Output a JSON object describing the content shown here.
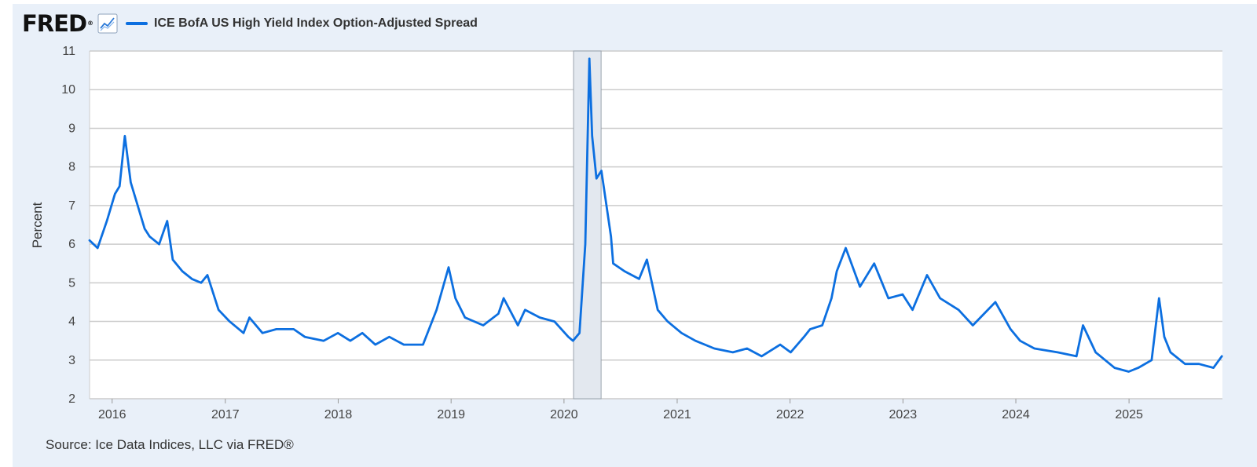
{
  "header": {
    "logo_text": "FRED",
    "logo_mark": "®",
    "series_label": "ICE BofA US High Yield Index Option-Adjusted Spread"
  },
  "source": "Source: Ice Data Indices, LLC via FRED®",
  "colors": {
    "series": "#0c6fe0",
    "recession": "#e3e8ef",
    "grid": "#cccccc",
    "panel": "#e9f0f9"
  },
  "icons": {
    "chart_icon": "line-chart-icon"
  },
  "chart_data": {
    "type": "line",
    "title": "",
    "xlabel": "",
    "ylabel": "Percent",
    "ylim": [
      2,
      11
    ],
    "xlim": [
      "2015-10-20",
      "2025-10-30"
    ],
    "grid": true,
    "yticks": [
      "2",
      "3",
      "4",
      "5",
      "6",
      "7",
      "8",
      "9",
      "10",
      "11"
    ],
    "xticks": [
      "2016",
      "2017",
      "2018",
      "2019",
      "2020",
      "2021",
      "2022",
      "2023",
      "2024",
      "2025"
    ],
    "shaded_periods": [
      {
        "start": "2020-02-01",
        "end": "2020-04-30",
        "label": "Recession"
      }
    ],
    "series": [
      {
        "name": "ICE BofA US High Yield Index Option-Adjusted Spread",
        "x": [
          "2015-10-20",
          "2015-11-15",
          "2015-12-15",
          "2016-01-10",
          "2016-01-25",
          "2016-02-11",
          "2016-03-01",
          "2016-03-20",
          "2016-04-15",
          "2016-05-01",
          "2016-06-01",
          "2016-06-27",
          "2016-07-15",
          "2016-08-15",
          "2016-09-15",
          "2016-10-15",
          "2016-11-04",
          "2016-12-10",
          "2017-01-15",
          "2017-03-01",
          "2017-03-20",
          "2017-05-01",
          "2017-06-15",
          "2017-08-10",
          "2017-09-15",
          "2017-11-15",
          "2017-12-31",
          "2018-02-09",
          "2018-03-20",
          "2018-05-01",
          "2018-06-15",
          "2018-08-01",
          "2018-10-02",
          "2018-11-15",
          "2018-12-24",
          "2019-01-15",
          "2019-02-15",
          "2019-04-15",
          "2019-06-03",
          "2019-06-20",
          "2019-08-05",
          "2019-08-28",
          "2019-10-15",
          "2019-12-01",
          "2020-01-15",
          "2020-01-30",
          "2020-02-20",
          "2020-03-10",
          "2020-03-23",
          "2020-04-01",
          "2020-04-15",
          "2020-05-01",
          "2020-06-01",
          "2020-06-08",
          "2020-07-15",
          "2020-08-31",
          "2020-09-25",
          "2020-10-30",
          "2020-12-01",
          "2021-01-15",
          "2021-03-01",
          "2021-05-01",
          "2021-06-30",
          "2021-08-15",
          "2021-10-01",
          "2021-11-30",
          "2022-01-03",
          "2022-02-15",
          "2022-03-07",
          "2022-04-15",
          "2022-05-15",
          "2022-06-01",
          "2022-06-30",
          "2022-08-15",
          "2022-09-30",
          "2022-11-15",
          "2022-12-31",
          "2023-02-01",
          "2023-03-20",
          "2023-05-01",
          "2023-06-30",
          "2023-08-15",
          "2023-10-27",
          "2023-12-15",
          "2024-01-15",
          "2024-03-01",
          "2024-05-15",
          "2024-07-15",
          "2024-08-05",
          "2024-09-15",
          "2024-11-15",
          "2024-12-31",
          "2025-01-31",
          "2025-03-15",
          "2025-04-08",
          "2025-04-25",
          "2025-05-15",
          "2025-07-01",
          "2025-08-15",
          "2025-10-01",
          "2025-10-28"
        ],
        "y": [
          6.1,
          5.9,
          6.6,
          7.3,
          7.5,
          8.8,
          7.6,
          7.1,
          6.4,
          6.2,
          6.0,
          6.6,
          5.6,
          5.3,
          5.1,
          5.0,
          5.2,
          4.3,
          4.0,
          3.7,
          4.1,
          3.7,
          3.8,
          3.8,
          3.6,
          3.5,
          3.7,
          3.5,
          3.7,
          3.4,
          3.6,
          3.4,
          3.4,
          4.3,
          5.4,
          4.6,
          4.1,
          3.9,
          4.2,
          4.6,
          3.9,
          4.3,
          4.1,
          4.0,
          3.6,
          3.5,
          3.7,
          6.0,
          10.8,
          8.8,
          7.7,
          7.9,
          6.2,
          5.5,
          5.3,
          5.1,
          5.6,
          4.3,
          4.0,
          3.7,
          3.5,
          3.3,
          3.2,
          3.3,
          3.1,
          3.4,
          3.2,
          3.6,
          3.8,
          3.9,
          4.6,
          5.3,
          5.9,
          4.9,
          5.5,
          4.6,
          4.7,
          4.3,
          5.2,
          4.6,
          4.3,
          3.9,
          4.5,
          3.8,
          3.5,
          3.3,
          3.2,
          3.1,
          3.9,
          3.2,
          2.8,
          2.7,
          2.8,
          3.0,
          4.6,
          3.6,
          3.2,
          2.9,
          2.9,
          2.8,
          3.1
        ]
      }
    ]
  }
}
